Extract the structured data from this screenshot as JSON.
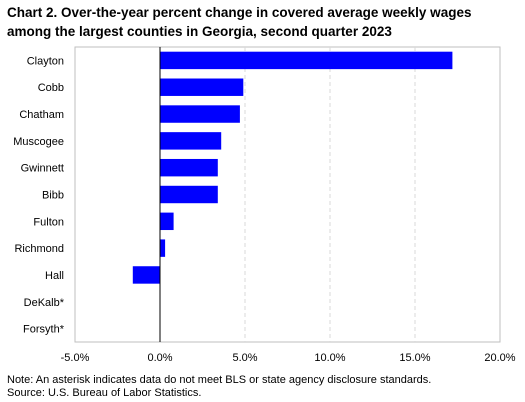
{
  "chart_data": {
    "type": "bar",
    "orientation": "horizontal",
    "title": "Chart 2. Over-the-year percent change in covered average weekly wages among the largest counties in Georgia, second quarter 2023",
    "categories": [
      "Clayton",
      "Cobb",
      "Chatham",
      "Muscogee",
      "Gwinnett",
      "Bibb",
      "Fulton",
      "Richmond",
      "Hall",
      "DeKalb*",
      "Forsyth*"
    ],
    "values": [
      17.2,
      4.9,
      4.7,
      3.6,
      3.4,
      3.4,
      0.8,
      0.3,
      -1.6,
      null,
      null
    ],
    "xlim": [
      -5.0,
      20.0
    ],
    "xticks": [
      -5.0,
      0.0,
      5.0,
      10.0,
      15.0,
      20.0
    ],
    "xtick_labels": [
      "-5.0%",
      "0.0%",
      "5.0%",
      "10.0%",
      "15.0%",
      "20.0%"
    ],
    "xlabel": "",
    "ylabel": "",
    "grid": "vertical dashed",
    "legend": "none",
    "bar_color": "#0000ff"
  },
  "notes": {
    "note": "Note: An asterisk indicates data do not meet BLS or state agency disclosure standards.",
    "source": "Source: U.S. Bureau of Labor Statistics."
  }
}
